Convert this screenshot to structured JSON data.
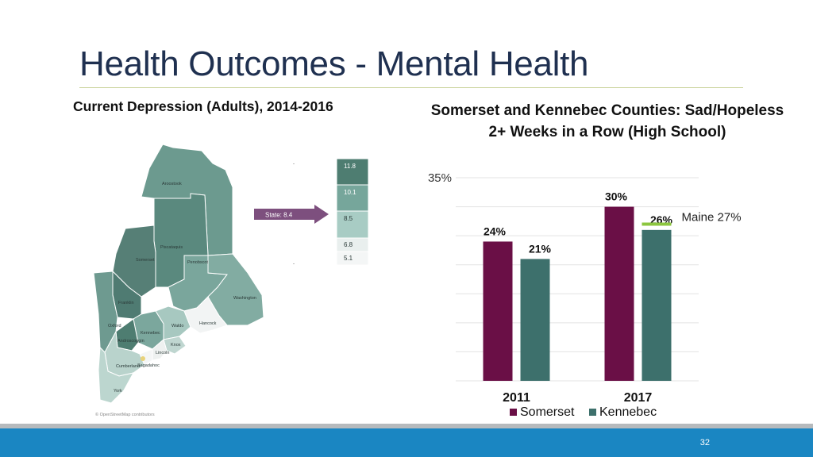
{
  "slide": {
    "title": "Health Outcomes - Mental Health",
    "page_number": "32"
  },
  "map": {
    "title": "Current Depression (Adults), 2014-2016",
    "state_label": "State: 8.4",
    "attribution": "© OpenStreetMap contributors",
    "legend": [
      "11.8",
      "10.1",
      "8.5",
      "6.8",
      "5.1"
    ],
    "legend_colors": [
      "#4e7d71",
      "#76a69b",
      "#a8ccc4",
      "#e9efee",
      "#f4f6f6"
    ],
    "counties": {
      "aroostook": "Aroostook",
      "piscataquis": "Piscataquis",
      "somerset": "Somerset",
      "penobscot": "Penobscot",
      "washington": "Washington",
      "franklin": "Franklin",
      "oxford": "Oxford",
      "kennebec": "Kennebec",
      "waldo": "Waldo",
      "hancock": "Hancock",
      "androscoggin": "Androscoggin",
      "knox": "Knox",
      "lincoln": "Lincoln",
      "sagadahoc": "Sagadahoc",
      "cumberland": "Cumberland",
      "york": "York"
    },
    "colors": {
      "aroostook": "#6c9a8f",
      "piscataquis": "#5a897e",
      "somerset": "#567f76",
      "penobscot": "#7aa69c",
      "washington": "#82aca2",
      "franklin": "#4f7b72",
      "oxford": "#6e9a90",
      "kennebec": "#7ba79d",
      "waldo": "#a7c8c0",
      "hancock": "#f2f4f4",
      "androscoggin": "#4e7d71",
      "knox": "#bfd6d0",
      "lincoln": "#eef1f0",
      "sagadahoc": "#f4f6f6",
      "cumberland": "#b9d3cc",
      "york": "#bcd6cf",
      "arrow": "#7d4f7e"
    }
  },
  "chart": {
    "title_line1": "Somerset and Kennebec Counties: Sad/Hopeless",
    "title_line2": "2+ Weeks in a Row (High School)",
    "maine_label": "Maine 27%",
    "colors": {
      "somerset": "#6a0f46",
      "kennebec": "#3d706c",
      "maine_marker": "#8cc63f",
      "grid": "#e3e3e3"
    }
  },
  "chart_data": {
    "type": "bar",
    "title": "Somerset and Kennebec Counties: Sad/Hopeless 2+ Weeks in a Row (High School)",
    "categories": [
      "2011",
      "2017"
    ],
    "series": [
      {
        "name": "Somerset",
        "values": [
          24,
          30
        ],
        "labels": [
          "24%",
          "30%"
        ]
      },
      {
        "name": "Kennebec",
        "values": [
          21,
          26
        ],
        "labels": [
          "21%",
          "26%"
        ]
      }
    ],
    "reference_line": {
      "name": "Maine",
      "value": 27,
      "category": "2017"
    },
    "ylim": [
      0,
      35
    ],
    "yticks": [
      {
        "value": 35,
        "label": "35%"
      }
    ],
    "grid_step": 5,
    "legend_position": "bottom"
  }
}
